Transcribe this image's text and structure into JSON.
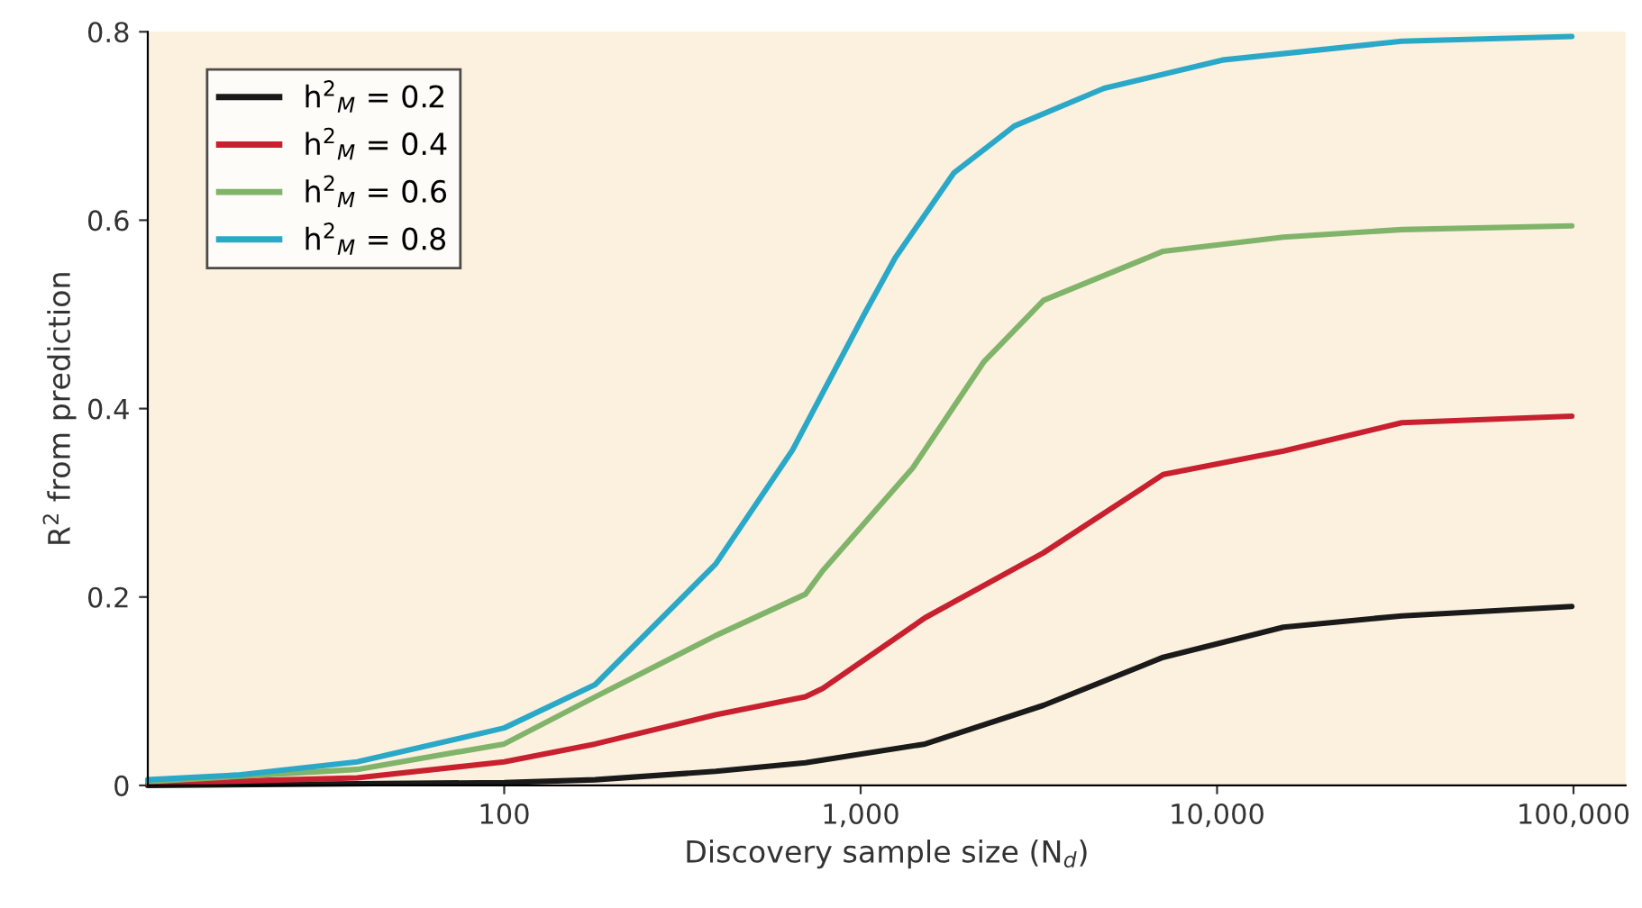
{
  "chart_data": {
    "type": "line",
    "xlabel": "Discovery sample size (N$_{d}$)",
    "ylabel": "R$^{2}$ from prediction",
    "log": "x",
    "xlim": [
      10,
      140000
    ],
    "xticks": [
      100,
      {
        "value": 1000,
        "label": "1,000"
      },
      {
        "value": 10000,
        "label": "10,000"
      },
      {
        "value": 100000,
        "label": "100,000"
      }
    ],
    "ylim": [
      0,
      0.8
    ],
    "yticks": [
      0,
      0.2,
      0.4,
      0.6,
      0.8
    ],
    "grid": false,
    "legend": "top left",
    "marker": "none",
    "line_style": "solid",
    "series": [
      {
        "name": "h$^{2}$$_{M}$ = 0.2",
        "color": "#1a1a1a",
        "x": [
          10,
          100,
          180,
          392,
          700,
          783,
          1517,
          3260,
          7060,
          15350,
          33000,
          98900
        ],
        "values": [
          0.0,
          0.003,
          0.006,
          0.015,
          0.024,
          0.027,
          0.044,
          0.085,
          0.136,
          0.168,
          0.18,
          0.19
        ]
      },
      {
        "name": "h$^{2}$$_{M}$ = 0.4",
        "color": "#c8202f",
        "x": [
          10,
          38.7,
          100,
          180,
          392,
          700,
          783,
          1517,
          3260,
          7060,
          15350,
          33000,
          98900
        ],
        "values": [
          0.002,
          0.008,
          0.025,
          0.044,
          0.075,
          0.094,
          0.103,
          0.178,
          0.247,
          0.33,
          0.355,
          0.385,
          0.392
        ]
      },
      {
        "name": "h$^{2}$$_{M}$ = 0.6",
        "color": "#80b46a",
        "x": [
          10,
          38.7,
          100,
          180,
          392,
          700,
          783,
          1400,
          2220,
          3260,
          7060,
          15350,
          33000,
          98900
        ],
        "values": [
          0.004,
          0.017,
          0.044,
          0.094,
          0.159,
          0.203,
          0.228,
          0.337,
          0.45,
          0.515,
          0.567,
          0.582,
          0.59,
          0.594
        ]
      },
      {
        "name": "h$^{2}$$_{M}$ = 0.8",
        "color": "#2aa8c8",
        "x": [
          10,
          17.8,
          38.7,
          100,
          180,
          392,
          644,
          1023,
          1250,
          1824,
          2700,
          4820,
          10350,
          33000,
          98900
        ],
        "values": [
          0.006,
          0.011,
          0.025,
          0.061,
          0.107,
          0.235,
          0.356,
          0.5,
          0.56,
          0.65,
          0.7,
          0.74,
          0.77,
          0.79,
          0.795
        ]
      }
    ]
  }
}
